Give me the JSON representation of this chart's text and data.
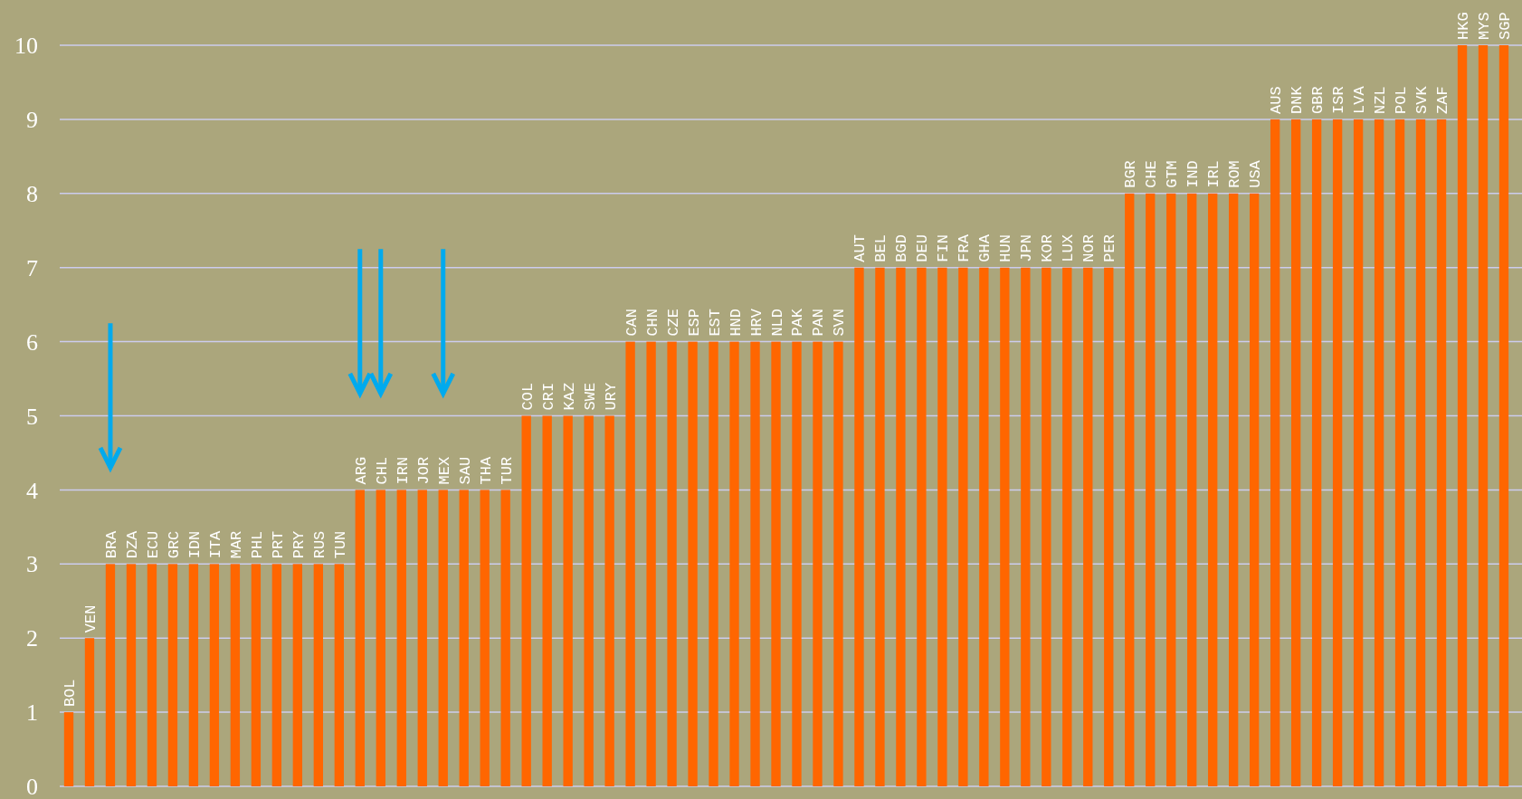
{
  "chart_data": {
    "type": "bar",
    "categories": [
      "BOL",
      "VEN",
      "BRA",
      "DZA",
      "ECU",
      "GRC",
      "IDN",
      "ITA",
      "MAR",
      "PHL",
      "PRT",
      "PRY",
      "RUS",
      "TUN",
      "ARG",
      "CHL",
      "IRN",
      "JOR",
      "MEX",
      "SAU",
      "THA",
      "TUR",
      "COL",
      "CRI",
      "KAZ",
      "SWE",
      "URY",
      "CAN",
      "CHN",
      "CZE",
      "ESP",
      "EST",
      "HND",
      "HRV",
      "NLD",
      "PAK",
      "PAN",
      "SVN",
      "AUT",
      "BEL",
      "BGD",
      "DEU",
      "FIN",
      "FRA",
      "GHA",
      "HUN",
      "JPN",
      "KOR",
      "LUX",
      "NOR",
      "PER",
      "BGR",
      "CHE",
      "GTM",
      "IND",
      "IRL",
      "ROM",
      "USA",
      "AUS",
      "DNK",
      "GBR",
      "ISR",
      "LVA",
      "NZL",
      "POL",
      "SVK",
      "ZAF",
      "HKG",
      "MYS",
      "SGP"
    ],
    "values": [
      1,
      2,
      3,
      3,
      3,
      3,
      3,
      3,
      3,
      3,
      3,
      3,
      3,
      3,
      4,
      4,
      4,
      4,
      4,
      4,
      4,
      4,
      5,
      5,
      5,
      5,
      5,
      6,
      6,
      6,
      6,
      6,
      6,
      6,
      6,
      6,
      6,
      6,
      7,
      7,
      7,
      7,
      7,
      7,
      7,
      7,
      7,
      7,
      7,
      7,
      7,
      8,
      8,
      8,
      8,
      8,
      8,
      8,
      9,
      9,
      9,
      9,
      9,
      9,
      9,
      9,
      9,
      10,
      10,
      10
    ],
    "color": "#ff6600",
    "ylim": [
      0,
      10
    ],
    "yticks": [
      0,
      1,
      2,
      3,
      4,
      5,
      6,
      7,
      8,
      9,
      10
    ],
    "grid": true
  }
}
